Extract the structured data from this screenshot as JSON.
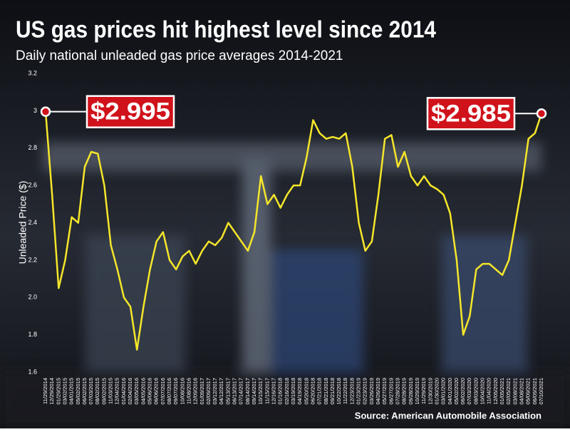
{
  "chart_data": {
    "type": "line",
    "title": "US gas prices hit highest level since 2014",
    "subtitle": "Daily national unleaded gas price averages 2014-2021",
    "y_label": "Unleaded Price ($)",
    "source": "Source: American Automobile Association",
    "annotations": [
      "$2.995",
      "$2.985"
    ],
    "categories": [
      "11/29/2014",
      "12/29/2014",
      "01/29/2015",
      "03/02/2015",
      "04/01/2015",
      "05/02/2015",
      "06/02/2015",
      "07/03/2015",
      "08/02/2015",
      "09/02/2015",
      "11/03/2015",
      "12/04/2015",
      "01/04/2016",
      "02/04/2016",
      "03/05/2016",
      "04/05/2016",
      "05/06/2016",
      "06/06/2016",
      "07/07/2016",
      "08/07/2016",
      "09/07/2016",
      "10/08/2016",
      "11/08/2016",
      "12/09/2016",
      "01/09/2017",
      "02/09/2017",
      "03/12/2017",
      "04/12/2017",
      "05/13/2017",
      "06/13/2017",
      "07/14/2017",
      "08/14/2017",
      "09/14/2017",
      "10/15/2017",
      "11/15/2017",
      "12/16/2017",
      "01/16/2018",
      "02/16/2018",
      "03/19/2018",
      "04/19/2018",
      "05/20/2018",
      "06/20/2018",
      "07/21/2018",
      "08/21/2018",
      "09/21/2018",
      "10/22/2018",
      "11/22/2018",
      "12/23/2018",
      "01/23/2019",
      "02/23/2019",
      "03/26/2019",
      "04/26/2019",
      "05/27/2019",
      "06/27/2019",
      "07/28/2019",
      "08/28/2019",
      "09/28/2019",
      "10/29/2019",
      "11/29/2019",
      "12/30/2019",
      "01/30/2020",
      "03/01/2020",
      "04/01/2020",
      "05/02/2020",
      "06/02/2020",
      "07/03/2020",
      "08/03/2020",
      "10/04/2020",
      "11/04/2020",
      "12/05/2020",
      "01/05/2021",
      "02/05/2021",
      "03/08/2021",
      "04/08/2021",
      "05/09/2021",
      "06/09/2021",
      "07/10/2021"
    ],
    "series": [
      {
        "name": "Unleaded",
        "color": "#f5e62a",
        "values": [
          2.995,
          2.55,
          2.05,
          2.2,
          2.43,
          2.4,
          2.7,
          2.78,
          2.77,
          2.6,
          2.28,
          2.15,
          2.0,
          1.95,
          1.72,
          1.95,
          2.15,
          2.3,
          2.35,
          2.2,
          2.15,
          2.22,
          2.25,
          2.18,
          2.25,
          2.3,
          2.28,
          2.32,
          2.4,
          2.35,
          2.3,
          2.25,
          2.35,
          2.65,
          2.5,
          2.55,
          2.48,
          2.55,
          2.6,
          2.6,
          2.75,
          2.95,
          2.88,
          2.85,
          2.86,
          2.85,
          2.88,
          2.7,
          2.4,
          2.25,
          2.3,
          2.55,
          2.85,
          2.87,
          2.7,
          2.78,
          2.65,
          2.6,
          2.65,
          2.6,
          2.58,
          2.55,
          2.45,
          2.2,
          1.8,
          1.9,
          2.15,
          2.18,
          2.18,
          2.15,
          2.12,
          2.2,
          2.4,
          2.6,
          2.85,
          2.88,
          2.985
        ]
      }
    ],
    "ylim": [
      1.6,
      3.2
    ],
    "yticks": [
      1.6,
      1.8,
      {
        "value": 2,
        "label": "2.0"
      },
      2.2,
      2.4,
      2.6,
      2.8,
      3,
      3.2
    ]
  }
}
